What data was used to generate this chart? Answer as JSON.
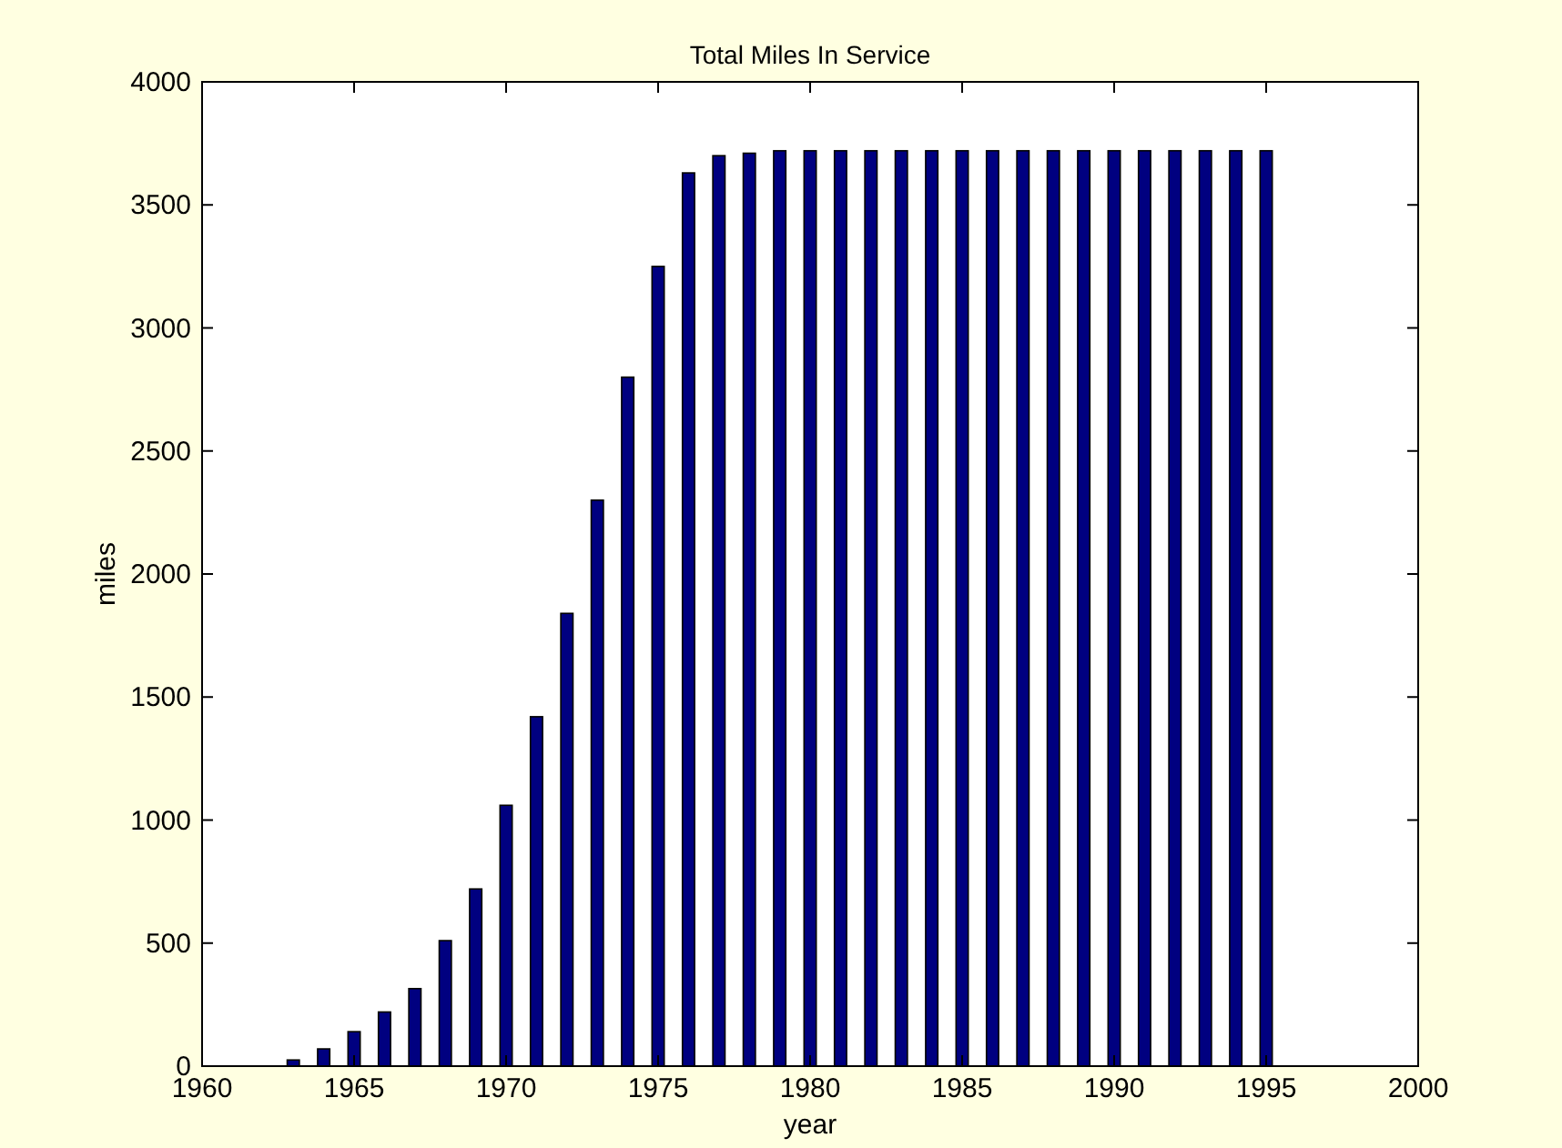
{
  "chart_data": {
    "type": "bar",
    "title": "Total Miles In Service",
    "xlabel": "year",
    "ylabel": "miles",
    "x": [
      1963,
      1964,
      1965,
      1966,
      1967,
      1968,
      1969,
      1970,
      1971,
      1972,
      1973,
      1974,
      1975,
      1976,
      1977,
      1978,
      1979,
      1980,
      1981,
      1982,
      1983,
      1984,
      1985,
      1986,
      1987,
      1988,
      1989,
      1990,
      1991,
      1992,
      1993,
      1994,
      1995
    ],
    "values": [
      25,
      70,
      140,
      220,
      315,
      510,
      720,
      1060,
      1420,
      1840,
      2300,
      2800,
      3250,
      3630,
      3700,
      3710,
      3720,
      3720,
      3720,
      3720,
      3720,
      3720,
      3720,
      3720,
      3720,
      3720,
      3720,
      3720,
      3720,
      3720,
      3720,
      3720,
      3720
    ],
    "color": "#000080",
    "xlim": [
      1960,
      2000
    ],
    "xticks": [
      1960,
      1965,
      1970,
      1975,
      1980,
      1985,
      1990,
      1995,
      2000
    ],
    "ylim": [
      0,
      4000
    ],
    "yticks": [
      0,
      500,
      1000,
      1500,
      2000,
      2500,
      3000,
      3500,
      4000
    ],
    "grid": false
  }
}
